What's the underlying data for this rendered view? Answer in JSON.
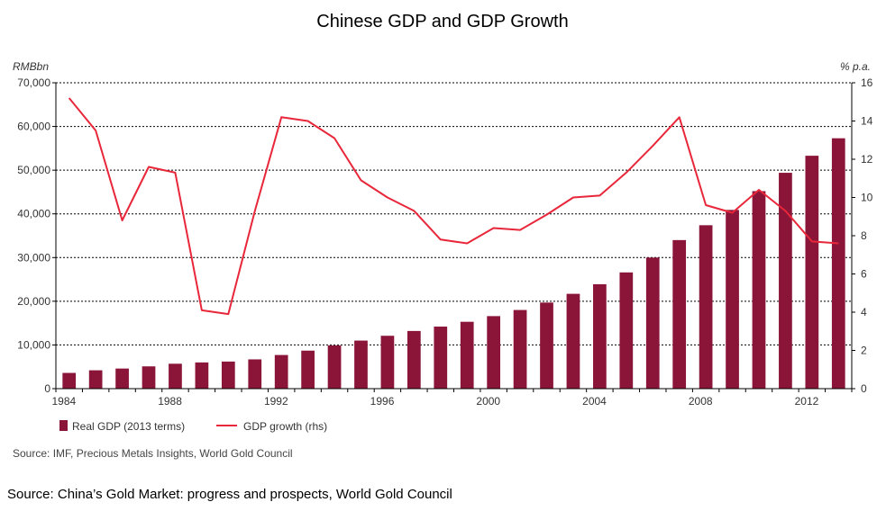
{
  "chart_data": {
    "type": "bar+line",
    "title": "Chinese GDP and GDP Growth",
    "y_left_unit": "RMBbn",
    "y_right_unit": "% p.a.",
    "y_left_lim": [
      0,
      70000
    ],
    "y_right_lim": [
      0,
      16
    ],
    "y_left_ticks": [
      "0",
      "10,000",
      "20,000",
      "30,000",
      "40,000",
      "50,000",
      "60,000",
      "70,000"
    ],
    "y_right_ticks": [
      "0",
      "2",
      "4",
      "6",
      "8",
      "10",
      "12",
      "14",
      "16"
    ],
    "x_tick_labels": [
      "1984",
      "1988",
      "1992",
      "1996",
      "2000",
      "2004",
      "2008",
      "2012"
    ],
    "grid": true,
    "legend_position": "bottom-left",
    "colors": {
      "bar": "#8b1538",
      "line": "#e8273a"
    },
    "x": [
      1984,
      1985,
      1986,
      1987,
      1988,
      1989,
      1990,
      1991,
      1992,
      1993,
      1994,
      1995,
      1996,
      1997,
      1998,
      1999,
      2000,
      2001,
      2002,
      2003,
      2004,
      2005,
      2006,
      2007,
      2008,
      2009,
      2010,
      2011,
      2012,
      2013
    ],
    "series": [
      {
        "name": "Real GDP (2013 terms)",
        "type": "bar",
        "axis": "left",
        "values": [
          3600,
          4200,
          4600,
          5100,
          5700,
          6000,
          6200,
          6700,
          7700,
          8700,
          9900,
          11000,
          12100,
          13200,
          14200,
          15300,
          16600,
          18000,
          19700,
          21700,
          23900,
          26600,
          30000,
          34000,
          37400,
          40900,
          45200,
          49400,
          53300,
          57300
        ]
      },
      {
        "name": "GDP growth (rhs)",
        "type": "line",
        "axis": "right",
        "values": [
          15.2,
          13.5,
          8.8,
          11.6,
          11.3,
          4.1,
          3.9,
          9.3,
          14.2,
          14.0,
          13.1,
          10.9,
          10.0,
          9.3,
          7.8,
          7.6,
          8.4,
          8.3,
          9.1,
          10.0,
          10.1,
          11.3,
          12.7,
          14.2,
          9.6,
          9.2,
          10.4,
          9.3,
          7.7,
          7.6
        ]
      }
    ]
  },
  "source_inner": "Source: IMF, Precious Metals Insights, World Gold Council",
  "source_outer": "Source: China’s Gold Market: progress and prospects, World Gold Council"
}
